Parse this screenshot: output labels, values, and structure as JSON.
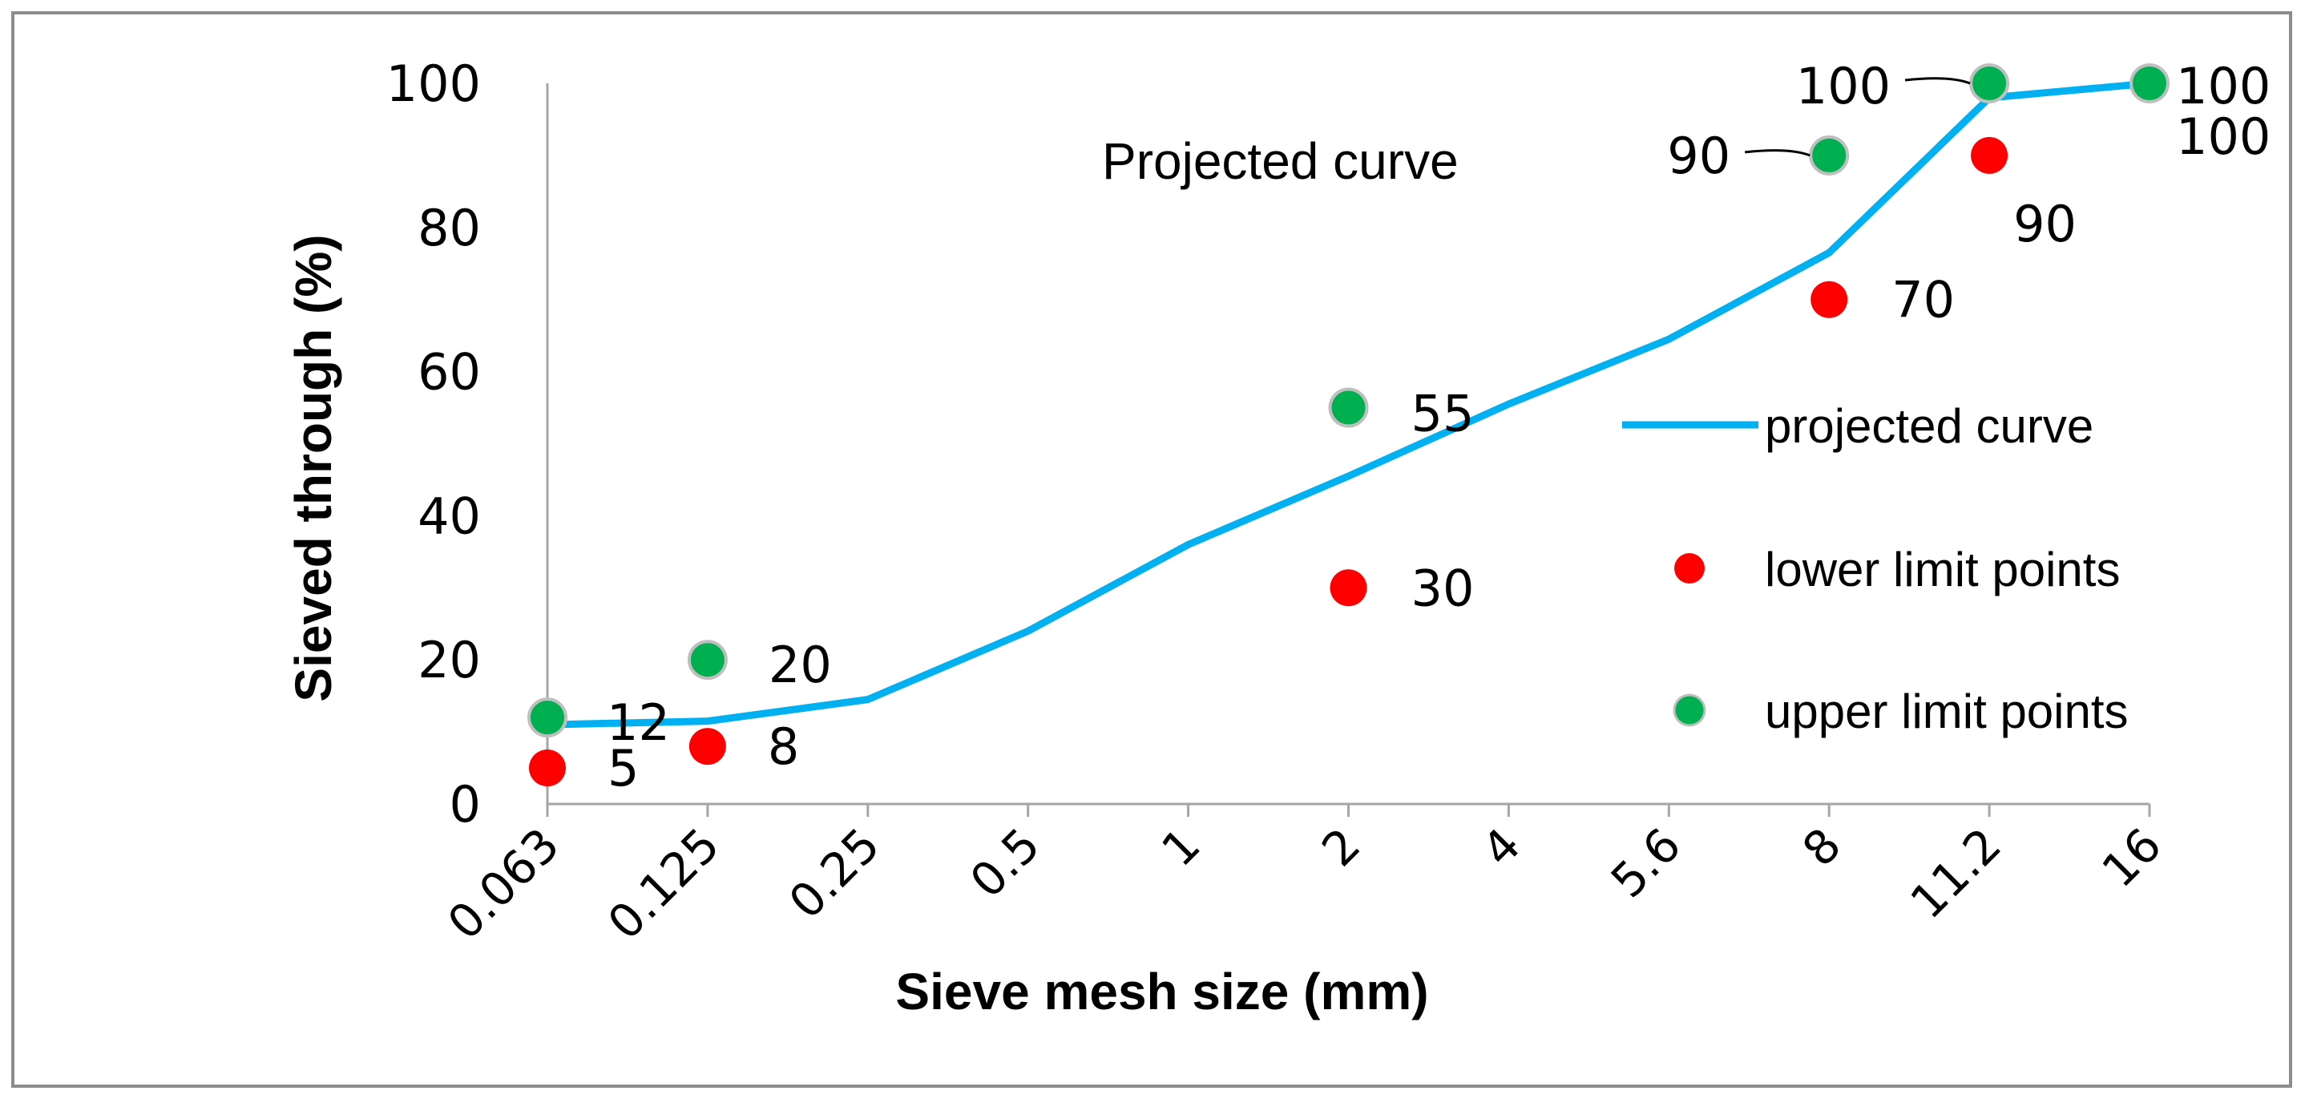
{
  "chart_data": {
    "type": "line",
    "xlabel": "Sieve mesh size (mm)",
    "ylabel": "Sieved through (%)",
    "ylim": [
      0,
      100
    ],
    "yticks": [
      0,
      20,
      40,
      60,
      80,
      100
    ],
    "categories": [
      "0.063",
      "0.125",
      "0.25",
      "0.5",
      "1",
      "2",
      "4",
      "5.6",
      "8",
      "11.2",
      "16"
    ],
    "annotation": "Projected curve",
    "legend_position": "right",
    "series": [
      {
        "name": "projected curve",
        "kind": "line",
        "color": "#00b0f0",
        "values": [
          11,
          11.5,
          14.5,
          24,
          36,
          45.5,
          55.5,
          64.5,
          76.5,
          98,
          100
        ]
      },
      {
        "name": "lower limit points",
        "kind": "scatter",
        "color": "#ff0000",
        "points": [
          {
            "x": "0.063",
            "y": 5,
            "label": "5"
          },
          {
            "x": "0.125",
            "y": 8,
            "label": "8"
          },
          {
            "x": "2",
            "y": 30,
            "label": "30"
          },
          {
            "x": "8",
            "y": 70,
            "label": "70"
          },
          {
            "x": "11.2",
            "y": 90,
            "label": "90"
          },
          {
            "x": "16",
            "y": 100,
            "label": "100"
          }
        ]
      },
      {
        "name": "upper limit points",
        "kind": "scatter",
        "color": "#00b050",
        "points": [
          {
            "x": "0.063",
            "y": 12,
            "label": "12"
          },
          {
            "x": "0.125",
            "y": 20,
            "label": "20"
          },
          {
            "x": "2",
            "y": 55,
            "label": "55"
          },
          {
            "x": "8",
            "y": 90,
            "label": "90"
          },
          {
            "x": "11.2",
            "y": 100,
            "label": "100"
          },
          {
            "x": "16",
            "y": 100,
            "label": "100"
          }
        ]
      }
    ]
  }
}
